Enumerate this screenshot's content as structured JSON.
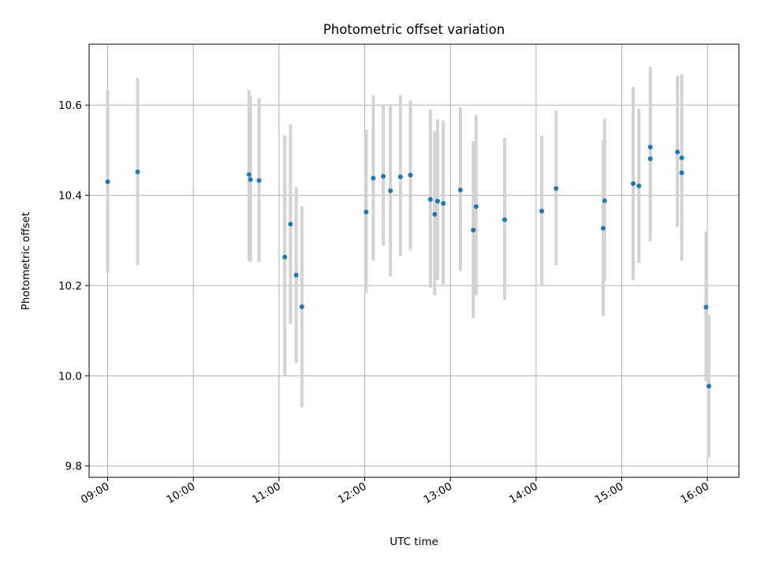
{
  "chart_data": {
    "type": "scatter",
    "title": "Photometric offset variation",
    "xlabel": "UTC time",
    "ylabel": "Photometric offset",
    "xlim": [
      "08:47",
      "16:22"
    ],
    "ylim": [
      9.775,
      10.735
    ],
    "x_ticks": [
      "09:00",
      "10:00",
      "11:00",
      "12:00",
      "13:00",
      "14:00",
      "15:00",
      "16:00"
    ],
    "y_ticks": [
      9.8,
      10.0,
      10.2,
      10.4,
      10.6
    ],
    "y_tick_labels": [
      "9.8",
      "10.0",
      "10.2",
      "10.4",
      "10.6"
    ],
    "grid": true,
    "colors": {
      "point": "#1f77b4",
      "errorbar": "#d3d3d3"
    },
    "points": [
      {
        "x": "09:00",
        "y": 10.43,
        "err_low": 10.228,
        "err_high": 10.633
      },
      {
        "x": "09:21",
        "y": 10.452,
        "err_low": 10.245,
        "err_high": 10.66
      },
      {
        "x": "10:39",
        "y": 10.446,
        "err_low": 10.255,
        "err_high": 10.633
      },
      {
        "x": "10:40",
        "y": 10.435,
        "err_low": 10.252,
        "err_high": 10.62
      },
      {
        "x": "10:46",
        "y": 10.433,
        "err_low": 10.252,
        "err_high": 10.615
      },
      {
        "x": "11:04",
        "y": 10.263,
        "err_low": 9.998,
        "err_high": 10.533
      },
      {
        "x": "11:08",
        "y": 10.336,
        "err_low": 10.115,
        "err_high": 10.557
      },
      {
        "x": "11:12",
        "y": 10.223,
        "err_low": 10.028,
        "err_high": 10.418
      },
      {
        "x": "11:16",
        "y": 10.153,
        "err_low": 9.93,
        "err_high": 10.375
      },
      {
        "x": "12:01",
        "y": 10.363,
        "err_low": 10.182,
        "err_high": 10.545
      },
      {
        "x": "12:06",
        "y": 10.438,
        "err_low": 10.255,
        "err_high": 10.622
      },
      {
        "x": "12:13",
        "y": 10.442,
        "err_low": 10.288,
        "err_high": 10.6
      },
      {
        "x": "12:18",
        "y": 10.41,
        "err_low": 10.22,
        "err_high": 10.602
      },
      {
        "x": "12:25",
        "y": 10.441,
        "err_low": 10.265,
        "err_high": 10.622
      },
      {
        "x": "12:32",
        "y": 10.445,
        "err_low": 10.278,
        "err_high": 10.61
      },
      {
        "x": "12:46",
        "y": 10.391,
        "err_low": 10.195,
        "err_high": 10.59
      },
      {
        "x": "12:49",
        "y": 10.358,
        "err_low": 10.178,
        "err_high": 10.542
      },
      {
        "x": "12:51",
        "y": 10.387,
        "err_low": 10.212,
        "err_high": 10.568
      },
      {
        "x": "12:55",
        "y": 10.382,
        "err_low": 10.202,
        "err_high": 10.566
      },
      {
        "x": "13:07",
        "y": 10.412,
        "err_low": 10.232,
        "err_high": 10.595
      },
      {
        "x": "13:16",
        "y": 10.323,
        "err_low": 10.128,
        "err_high": 10.52
      },
      {
        "x": "13:18",
        "y": 10.375,
        "err_low": 10.178,
        "err_high": 10.577
      },
      {
        "x": "13:38",
        "y": 10.346,
        "err_low": 10.168,
        "err_high": 10.527
      },
      {
        "x": "14:04",
        "y": 10.365,
        "err_low": 10.2,
        "err_high": 10.532
      },
      {
        "x": "14:14",
        "y": 10.415,
        "err_low": 10.245,
        "err_high": 10.588
      },
      {
        "x": "14:47",
        "y": 10.327,
        "err_low": 10.132,
        "err_high": 10.522
      },
      {
        "x": "14:48",
        "y": 10.388,
        "err_low": 10.21,
        "err_high": 10.57
      },
      {
        "x": "15:08",
        "y": 10.426,
        "err_low": 10.212,
        "err_high": 10.64
      },
      {
        "x": "15:12",
        "y": 10.421,
        "err_low": 10.25,
        "err_high": 10.592
      },
      {
        "x": "15:20",
        "y": 10.507,
        "err_low": 10.325,
        "err_high": 10.685
      },
      {
        "x": "15:20",
        "y": 10.481,
        "err_low": 10.298,
        "err_high": 10.665
      },
      {
        "x": "15:39",
        "y": 10.496,
        "err_low": 10.33,
        "err_high": 10.665
      },
      {
        "x": "15:42",
        "y": 10.483,
        "err_low": 10.3,
        "err_high": 10.668
      },
      {
        "x": "15:42",
        "y": 10.45,
        "err_low": 10.255,
        "err_high": 10.648
      },
      {
        "x": "15:59",
        "y": 10.152,
        "err_low": 9.988,
        "err_high": 10.32
      },
      {
        "x": "16:01",
        "y": 9.977,
        "err_low": 9.82,
        "err_high": 10.135
      }
    ]
  }
}
